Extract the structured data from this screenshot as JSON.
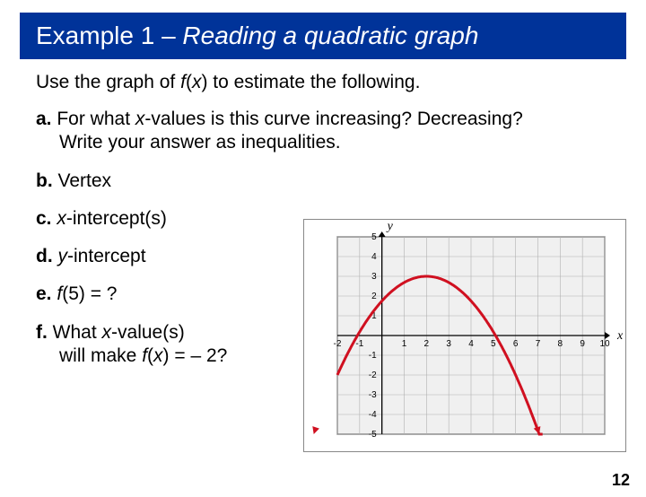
{
  "title": {
    "prefix": "Example 1 – ",
    "main": "Reading a quadratic graph"
  },
  "intro": {
    "pre": "Use the graph of ",
    "fx": "f",
    "paren": "(",
    "x": "x",
    "post": ") to estimate the following."
  },
  "qa": {
    "label": "a.",
    "line1_pre": " For what ",
    "line1_x": "x",
    "line1_post": "-values is this curve increasing? Decreasing?",
    "line2": "Write your answer as inequalities."
  },
  "qb": {
    "label": "b.",
    "text": " Vertex"
  },
  "qc": {
    "label": "c.",
    "pre": " ",
    "x": "x",
    "post": "-intercept(s)"
  },
  "qd": {
    "label": "d.",
    "pre": " ",
    "y": "y",
    "post": "-intercept"
  },
  "qe": {
    "label": "e.",
    "pre": " ",
    "f": "f",
    "arg": "(5) = ?"
  },
  "qf": {
    "label": "f.",
    "line1_pre": " What ",
    "line1_x": "x",
    "line1_post": "-value(s)",
    "line2_pre": "will make ",
    "line2_f": "f",
    "line2_paren": "(",
    "line2_x": "x",
    "line2_post": ") = – 2?"
  },
  "pageNumber": "12",
  "chart": {
    "type": "line",
    "background_color": "#f0f0f0",
    "grid_color": "#b0b0b0",
    "axis_color": "#000000",
    "curve_color": "#d01020",
    "curve_width": 3,
    "xlim": [
      -2,
      10
    ],
    "ylim": [
      -5,
      5
    ],
    "xticks": [
      -2,
      -1,
      1,
      2,
      3,
      4,
      5,
      6,
      7,
      8,
      9,
      10
    ],
    "yticks": [
      -5,
      -4,
      -3,
      -2,
      -1,
      1,
      2,
      3,
      4,
      5
    ],
    "xlabel": "x",
    "ylabel": "y",
    "label_fontsize": 14,
    "tick_fontsize": 10,
    "vertex": [
      2,
      3
    ],
    "a": -0.3125
  }
}
